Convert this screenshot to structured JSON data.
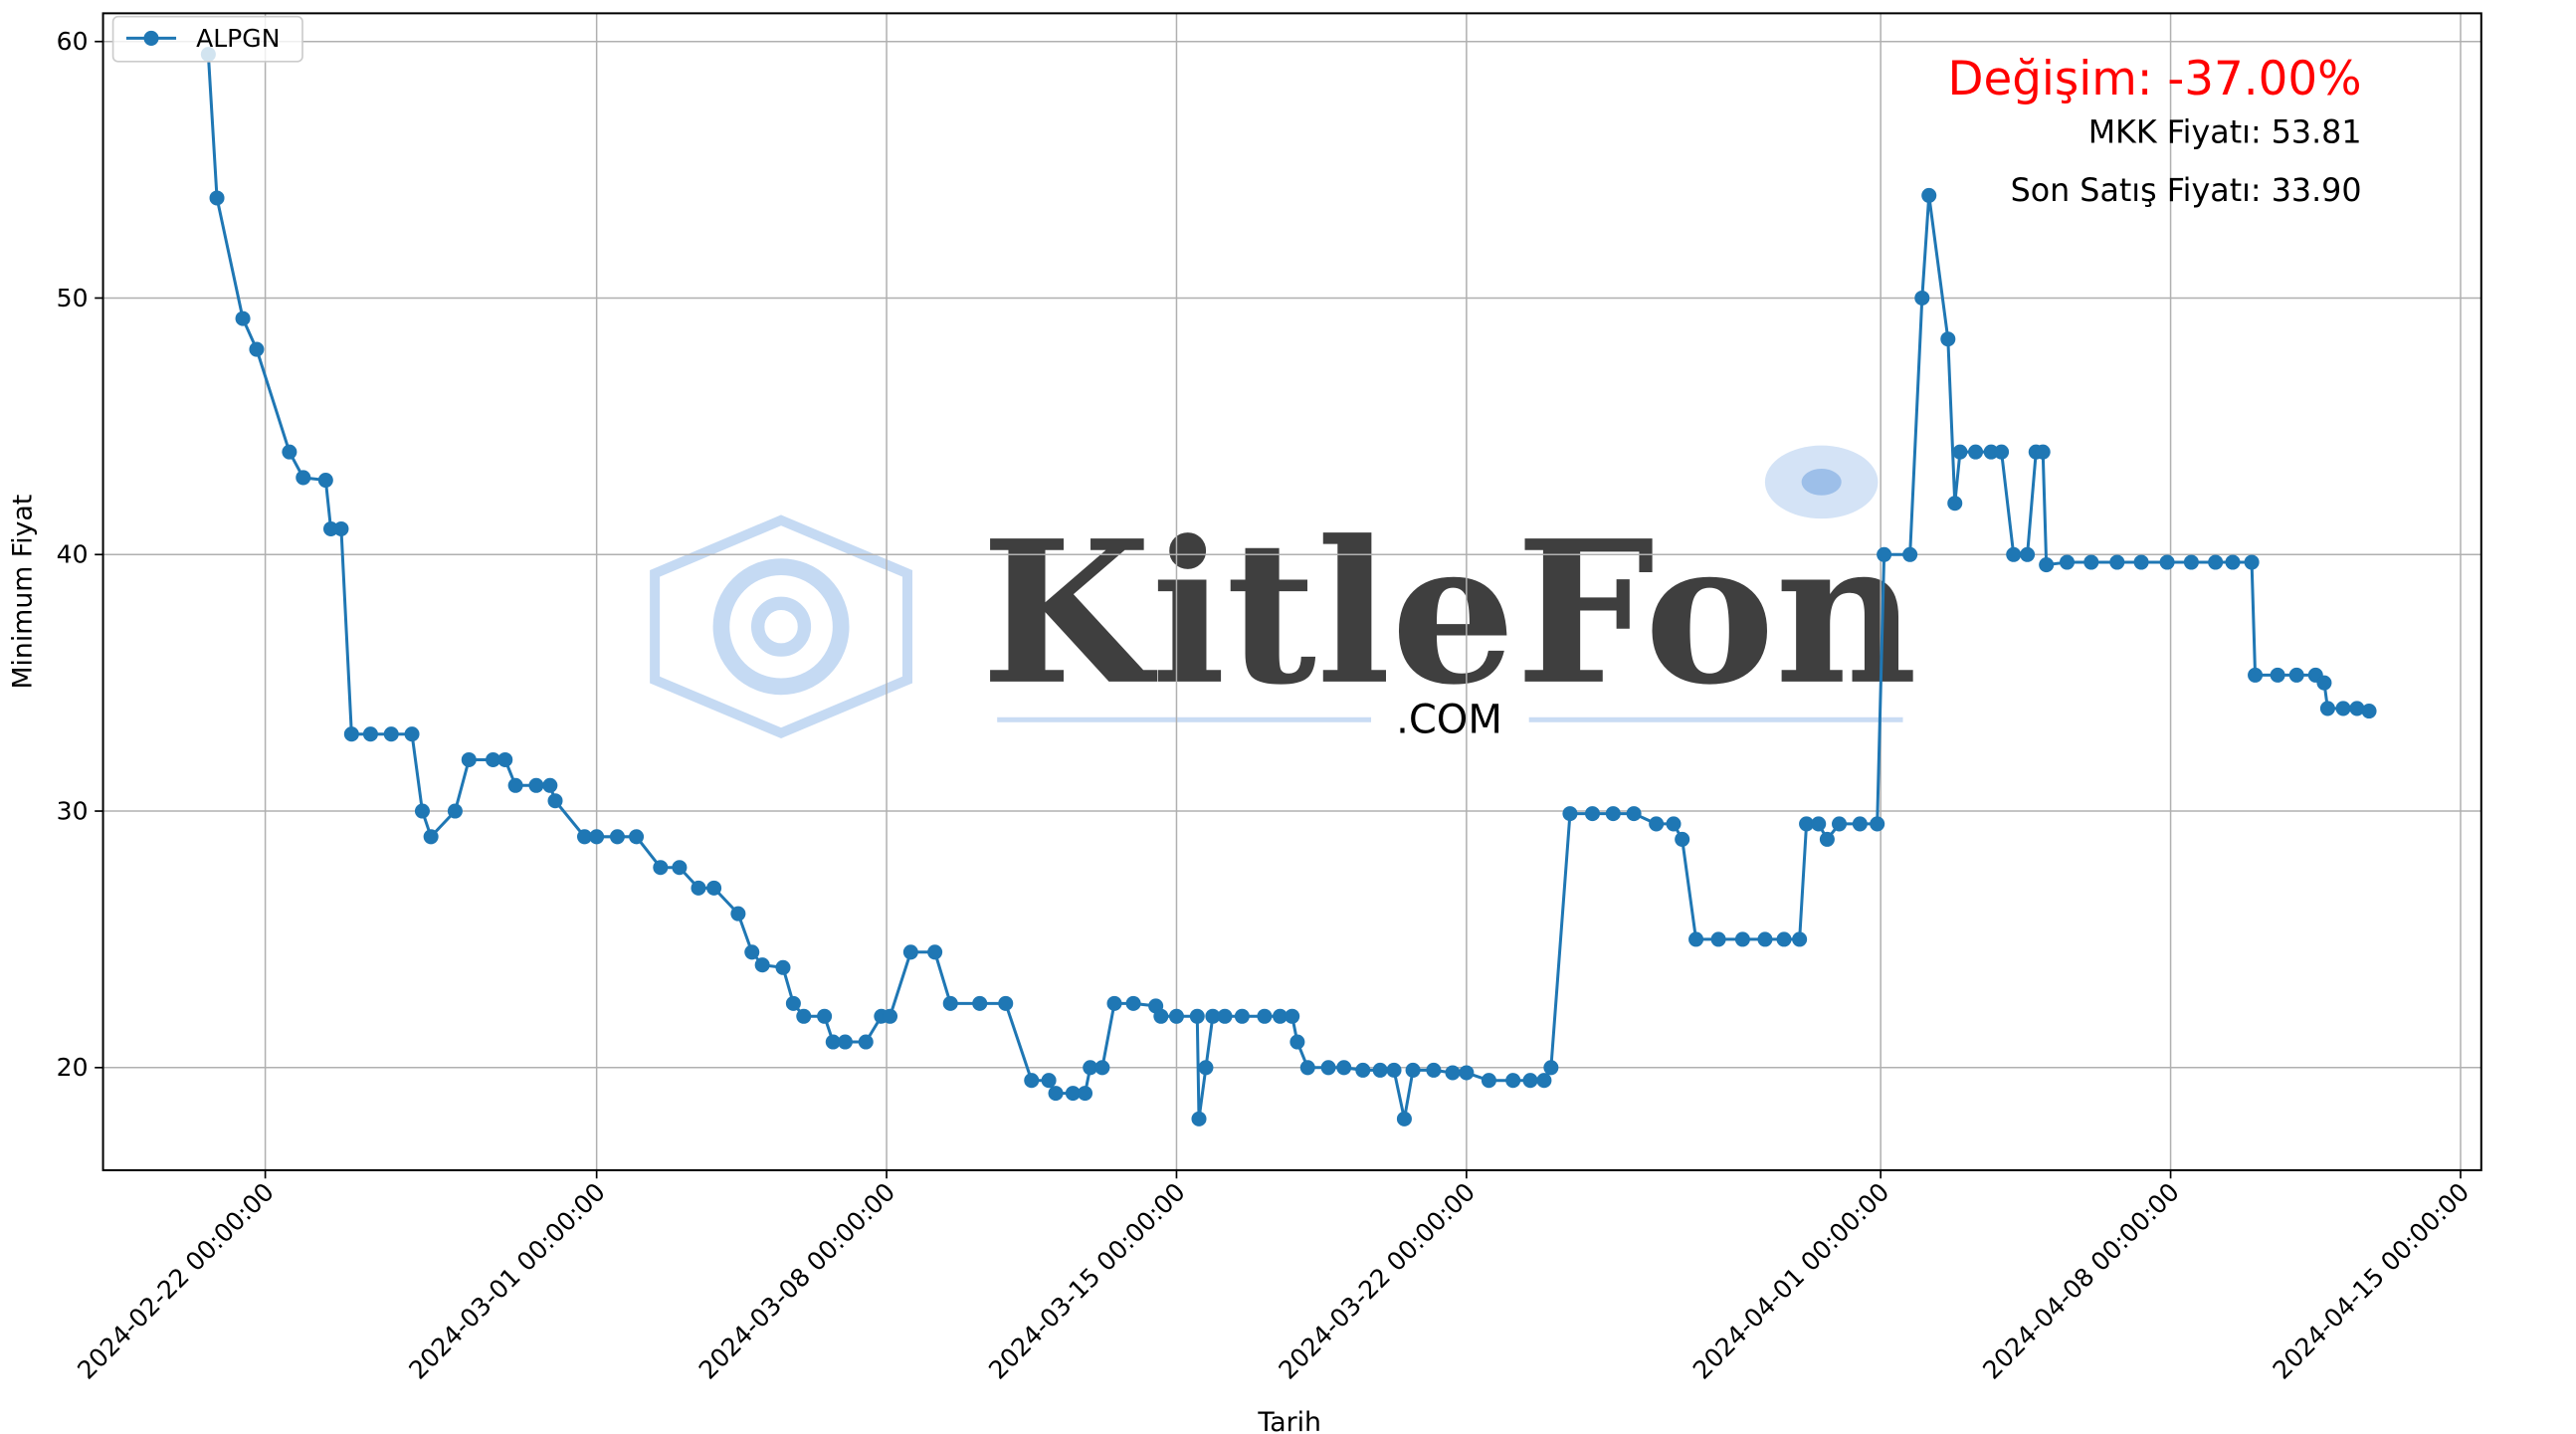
{
  "chart_data": {
    "type": "line",
    "x_label": "Tarih",
    "y_label": "Minimum Fiyat",
    "annotations": [
      "Değişim: -37.00%",
      "MKK Fiyatı: 53.81",
      "Son Satış Fiyatı: 33.90"
    ],
    "annotation_colors": [
      "#ff0000",
      "#000000",
      "#000000"
    ],
    "watermark": "KitleFon",
    "watermark_sub": ".COM",
    "grid": true,
    "legend": "upper left",
    "xlim": [
      "2024-02-18 02:00:00",
      "2024-04-15 12:00:00"
    ],
    "xticks": [
      "2024-02-22 00:00:00",
      "2024-03-01 00:00:00",
      "2024-03-08 00:00:00",
      "2024-03-15 00:00:00",
      "2024-03-22 00:00:00",
      "2024-04-01 00:00:00",
      "2024-04-08 00:00:00",
      "2024-04-15 00:00:00"
    ],
    "ylim": [
      16,
      61.1
    ],
    "yticks": [
      20,
      30,
      40,
      50,
      60
    ],
    "x": [
      "2024-02-20 15:00:00",
      "2024-02-20 20:00:00",
      "2024-02-21 11:00:00",
      "2024-02-21 19:00:00",
      "2024-02-22 14:00:00",
      "2024-02-22 22:00:00",
      "2024-02-23 11:00:00",
      "2024-02-23 14:00:00",
      "2024-02-23 20:00:00",
      "2024-02-24 02:00:00",
      "2024-02-24 13:00:00",
      "2024-02-25 01:00:00",
      "2024-02-25 13:00:00",
      "2024-02-25 19:00:00",
      "2024-02-26 00:00:00",
      "2024-02-26 14:00:00",
      "2024-02-26 22:00:00",
      "2024-02-27 12:00:00",
      "2024-02-27 19:00:00",
      "2024-02-28 01:00:00",
      "2024-02-28 13:00:00",
      "2024-02-28 21:00:00",
      "2024-02-29 00:00:00",
      "2024-02-29 17:00:00",
      "2024-03-01 00:00:00",
      "2024-03-01 12:00:00",
      "2024-03-01 23:00:00",
      "2024-03-02 13:00:00",
      "2024-03-03 00:00:00",
      "2024-03-03 11:00:00",
      "2024-03-03 20:00:00",
      "2024-03-04 10:00:00",
      "2024-03-04 18:00:00",
      "2024-03-05 00:00:00",
      "2024-03-05 12:00:00",
      "2024-03-05 18:00:00",
      "2024-03-06 00:00:00",
      "2024-03-06 12:00:00",
      "2024-03-06 17:00:00",
      "2024-03-07 00:00:00",
      "2024-03-07 12:00:00",
      "2024-03-07 21:00:00",
      "2024-03-08 02:00:00",
      "2024-03-08 14:00:00",
      "2024-03-09 04:00:00",
      "2024-03-09 13:00:00",
      "2024-03-10 06:00:00",
      "2024-03-10 21:00:00",
      "2024-03-11 12:00:00",
      "2024-03-11 22:00:00",
      "2024-03-12 02:00:00",
      "2024-03-12 12:00:00",
      "2024-03-12 19:00:00",
      "2024-03-12 22:00:00",
      "2024-03-13 05:00:00",
      "2024-03-13 12:00:00",
      "2024-03-13 23:00:00",
      "2024-03-14 12:00:00",
      "2024-03-14 15:00:00",
      "2024-03-15 00:00:00",
      "2024-03-15 12:00:00",
      "2024-03-15 13:00:00",
      "2024-03-15 17:00:00",
      "2024-03-15 21:00:00",
      "2024-03-16 04:00:00",
      "2024-03-16 14:00:00",
      "2024-03-17 03:00:00",
      "2024-03-17 12:00:00",
      "2024-03-17 19:00:00",
      "2024-03-17 22:00:00",
      "2024-03-18 04:00:00",
      "2024-03-18 16:00:00",
      "2024-03-19 01:00:00",
      "2024-03-19 12:00:00",
      "2024-03-19 22:00:00",
      "2024-03-20 06:00:00",
      "2024-03-20 12:00:00",
      "2024-03-20 17:00:00",
      "2024-03-21 05:00:00",
      "2024-03-21 16:00:00",
      "2024-03-22 00:00:00",
      "2024-03-22 13:00:00",
      "2024-03-23 03:00:00",
      "2024-03-23 13:00:00",
      "2024-03-23 21:00:00",
      "2024-03-24 01:00:00",
      "2024-03-24 12:00:00",
      "2024-03-25 01:00:00",
      "2024-03-25 13:00:00",
      "2024-03-26 01:00:00",
      "2024-03-26 14:00:00",
      "2024-03-27 00:00:00",
      "2024-03-27 05:00:00",
      "2024-03-27 13:00:00",
      "2024-03-28 02:00:00",
      "2024-03-28 16:00:00",
      "2024-03-29 05:00:00",
      "2024-03-29 16:00:00",
      "2024-03-30 01:00:00",
      "2024-03-30 05:00:00",
      "2024-03-30 12:00:00",
      "2024-03-30 17:00:00",
      "2024-03-31 00:00:00",
      "2024-03-31 12:00:00",
      "2024-03-31 22:00:00",
      "2024-04-01 02:00:00",
      "2024-04-01 17:00:00",
      "2024-04-02 00:00:00",
      "2024-04-02 04:00:00",
      "2024-04-02 15:00:00",
      "2024-04-02 19:00:00",
      "2024-04-02 22:00:00",
      "2024-04-03 07:00:00",
      "2024-04-03 16:00:00",
      "2024-04-03 22:00:00",
      "2024-04-04 05:00:00",
      "2024-04-04 13:00:00",
      "2024-04-04 18:00:00",
      "2024-04-04 22:00:00",
      "2024-04-05 00:00:00",
      "2024-04-05 12:00:00",
      "2024-04-06 02:00:00",
      "2024-04-06 17:00:00",
      "2024-04-07 07:00:00",
      "2024-04-07 22:00:00",
      "2024-04-08 12:00:00",
      "2024-04-09 02:00:00",
      "2024-04-09 12:00:00",
      "2024-04-09 23:00:00",
      "2024-04-10 01:00:00",
      "2024-04-10 14:00:00",
      "2024-04-11 01:00:00",
      "2024-04-11 12:00:00",
      "2024-04-11 17:00:00",
      "2024-04-11 19:00:00",
      "2024-04-12 04:00:00",
      "2024-04-12 12:00:00",
      "2024-04-12 19:00:00"
    ],
    "series": [
      {
        "name": "ALPGN",
        "color": "#1f77b4",
        "values": [
          59.5,
          53.9,
          49.2,
          48.0,
          44.0,
          43.0,
          42.9,
          41.0,
          41.0,
          33.0,
          33.0,
          33.0,
          33.0,
          30.0,
          29.0,
          30.0,
          32.0,
          32.0,
          32.0,
          31.0,
          31.0,
          31.0,
          30.4,
          29.0,
          29.0,
          29.0,
          29.0,
          27.8,
          27.8,
          27.0,
          27.0,
          26.0,
          24.5,
          24.0,
          23.9,
          22.5,
          22.0,
          22.0,
          21.0,
          21.0,
          21.0,
          22.0,
          22.0,
          24.5,
          24.5,
          22.5,
          22.5,
          22.5,
          19.5,
          19.5,
          19.0,
          19.0,
          19.0,
          20.0,
          20.0,
          22.5,
          22.5,
          22.4,
          22.0,
          22.0,
          22.0,
          18.0,
          20.0,
          22.0,
          22.0,
          22.0,
          22.0,
          22.0,
          22.0,
          21.0,
          20.0,
          20.0,
          20.0,
          19.9,
          19.9,
          19.9,
          18.0,
          19.9,
          19.9,
          19.8,
          19.8,
          19.5,
          19.5,
          19.5,
          19.5,
          20.0,
          29.9,
          29.9,
          29.9,
          29.9,
          29.5,
          29.5,
          28.9,
          25.0,
          25.0,
          25.0,
          25.0,
          25.0,
          25.0,
          29.5,
          29.5,
          28.9,
          29.5,
          29.5,
          29.5,
          40.0,
          40.0,
          50.0,
          54.0,
          48.4,
          42.0,
          44.0,
          44.0,
          44.0,
          44.0,
          40.0,
          40.0,
          44.0,
          44.0,
          39.6,
          39.7,
          39.7,
          39.7,
          39.7,
          39.7,
          39.7,
          39.7,
          39.7,
          39.7,
          35.3,
          35.3,
          35.3,
          35.3,
          35.0,
          34.0,
          34.0,
          34.0,
          33.9
        ]
      }
    ]
  }
}
